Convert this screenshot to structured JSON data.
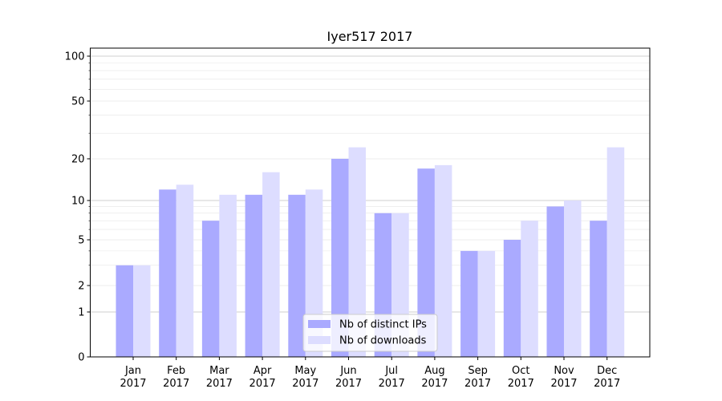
{
  "chart_data": {
    "type": "bar",
    "title": "Iyer517 2017",
    "xlabel": "",
    "ylabel": "",
    "yscale": "symlog",
    "ylim": [
      0,
      120
    ],
    "y_ticks": [
      0,
      1,
      2,
      5,
      10,
      20,
      50,
      100
    ],
    "y_tick_labels": [
      "0",
      "1",
      "2",
      "5",
      "10",
      "20",
      "50",
      "100"
    ],
    "grid": true,
    "legend_position": "lower center",
    "categories": [
      "Jan\n2017",
      "Feb\n2017",
      "Mar\n2017",
      "Apr\n2017",
      "May\n2017",
      "Jun\n2017",
      "Jul\n2017",
      "Aug\n2017",
      "Sep\n2017",
      "Oct\n2017",
      "Nov\n2017",
      "Dec\n2017"
    ],
    "category_labels": [
      {
        "month": "Jan",
        "year": "2017"
      },
      {
        "month": "Feb",
        "year": "2017"
      },
      {
        "month": "Mar",
        "year": "2017"
      },
      {
        "month": "Apr",
        "year": "2017"
      },
      {
        "month": "May",
        "year": "2017"
      },
      {
        "month": "Jun",
        "year": "2017"
      },
      {
        "month": "Jul",
        "year": "2017"
      },
      {
        "month": "Aug",
        "year": "2017"
      },
      {
        "month": "Sep",
        "year": "2017"
      },
      {
        "month": "Oct",
        "year": "2017"
      },
      {
        "month": "Nov",
        "year": "2017"
      },
      {
        "month": "Dec",
        "year": "2017"
      }
    ],
    "series": [
      {
        "name": "Nb of distinct IPs",
        "color": "#aaaaff",
        "values": [
          3,
          12,
          7,
          11,
          11,
          20,
          8,
          17,
          4,
          5,
          9,
          7
        ]
      },
      {
        "name": "Nb of downloads",
        "color": "#ddddff",
        "values": [
          3,
          13,
          11,
          16,
          12,
          24,
          8,
          18,
          4,
          7,
          10,
          24
        ]
      }
    ]
  }
}
